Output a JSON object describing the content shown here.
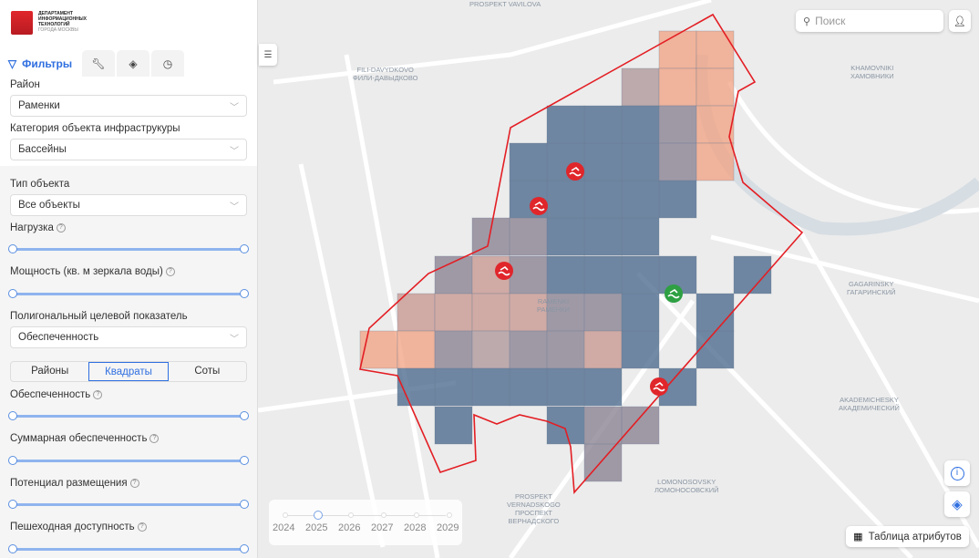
{
  "logo": {
    "line1": "ДЕПАРТАМЕНТ",
    "line2": "ИНФОРМАЦИОННЫХ",
    "line3": "ТЕХНОЛОГИЙ",
    "line4": "ГОРОДА МОСКВЫ"
  },
  "tabs": [
    {
      "label": "Фильтры",
      "icon": "filter-icon"
    },
    {
      "icon": "wrench-icon"
    },
    {
      "icon": "layers-box-icon"
    },
    {
      "icon": "history-icon"
    }
  ],
  "filters": {
    "district_label": "Район",
    "district_value": "Раменки",
    "category_label": "Категория объекта инфраструкуры",
    "category_value": "Бассейны",
    "type_label": "Тип объекта",
    "type_value": "Все объекты",
    "load_label": "Нагрузка",
    "power_label": "Мощность (кв. м зеркала воды)",
    "polygon_label": "Полигональный целевой показатель",
    "polygon_value": "Обеспеченность",
    "modes": [
      "Районы",
      "Квадраты",
      "Соты"
    ],
    "active_mode": "Квадраты",
    "s1": "Обеспеченность",
    "s2": "Суммарная обеспеченность",
    "s3": "Потенциал размещения",
    "s4": "Пешеходная доступность"
  },
  "search": {
    "placeholder": "Поиск"
  },
  "timeline": {
    "years": [
      "2024",
      "2025",
      "2026",
      "2027",
      "2028",
      "2029"
    ],
    "selected": "2025"
  },
  "attr_table_label": "Таблица атрибутов",
  "map_labels": {
    "l1": "FILI-DAVYDKOVO\nФИЛИ-ДАВЫДКОВО",
    "l2": "KHAMOVNIKI\nХАМОВНИКИ",
    "l3": "RAMENKI\nРАМЕНКИ",
    "l4": "GAGARINSKY\nГАГАРИНСКИЙ",
    "l5": "AKADEMICHESKY\nАКАДЕМИЧЕСКИЙ",
    "l6": "LOMONOSOVSKY\nЛОМОНОСОВСКИЙ",
    "l7": "PROSPEKT\nVERNADSKOGO\nПРОСПЕКТ\nВЕРНАДСКОГО",
    "l8": "PROSPEKT VAVILOVA"
  },
  "colors": {
    "accent": "#2f6fe0",
    "boundary": "#e31e24",
    "low": "#4f6d8f",
    "high": "#f2a080",
    "marker_red": "#e0262b",
    "marker_green": "#2ea043"
  }
}
